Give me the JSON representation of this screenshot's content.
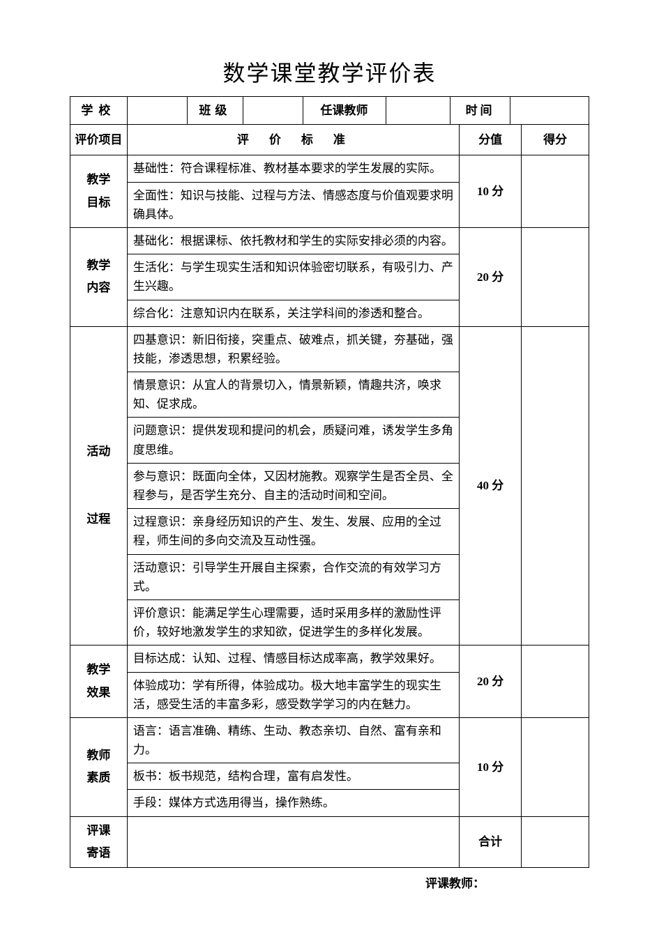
{
  "title": "数学课堂教学评价表",
  "header": {
    "school_label": "学校",
    "class_label": "班级",
    "teacher_label": "任课教师",
    "time_label": "时间",
    "school_value": "",
    "class_value": "",
    "teacher_value": "",
    "time_value": ""
  },
  "columns": {
    "category": "评价项目",
    "criteria": "评　价　标　准",
    "score": "分值",
    "got": "得分"
  },
  "sections": [
    {
      "category": "教学\n目标",
      "score": "10 分",
      "criteria": [
        "基础性：符合课程标准、教材基本要求的学生发展的实际。",
        "全面性：知识与技能、过程与方法、情感态度与价值观要求明确具体。"
      ]
    },
    {
      "category": "教学\n内容",
      "score": "20 分",
      "criteria": [
        "基础化：根据课标、依托教材和学生的实际安排必须的内容。",
        "生活化：与学生现实生活和知识体验密切联系，有吸引力、产生兴趣。",
        "综合化：注意知识内在联系，关注学科间的渗透和整合。"
      ]
    },
    {
      "category": "活动\n\n过程",
      "score": "40 分",
      "criteria": [
        "四基意识：新旧衔接，突重点、破难点，抓关键，夯基础，强技能，渗透思想，积累经验。",
        "情景意识：从宜人的背景切入，情景新颖，情趣共济，唤求知、促求成。",
        "问题意识：提供发现和提问的机会，质疑问难，诱发学生多角度思维。",
        "参与意识：既面向全体，又因材施教。观察学生是否全员、全程参与，是否学生充分、自主的活动时间和空间。",
        "过程意识：亲身经历知识的产生、发生、发展、应用的全过程，师生间的多向交流及互动性强。",
        "活动意识：引导学生开展自主探索，合作交流的有效学习方式。",
        "评价意识：能满足学生心理需要，适时采用多样的激励性评价，较好地激发学生的求知欲，促进学生的多样化发展。"
      ]
    },
    {
      "category": "教学\n效果",
      "score": "20 分",
      "criteria": [
        "目标达成：认知、过程、情感目标达成率高，教学效果好。",
        "体验成功：学有所得，体验成功。极大地丰富学生的现实生活，感受生活的丰富多彩，感受数学学习的内在魅力。"
      ]
    },
    {
      "category": "教师\n素质",
      "score": "10 分",
      "criteria": [
        "语言：语言准确、精练、生动、教态亲切、自然、富有亲和力。",
        "板书：板书规范，结构合理，富有启发性。",
        "手段：媒体方式选用得当，操作熟练。"
      ]
    }
  ],
  "footer_row": {
    "category": "评课\n寄语",
    "content": "",
    "total_label": "合计",
    "total_value": ""
  },
  "signature": "评课教师："
}
